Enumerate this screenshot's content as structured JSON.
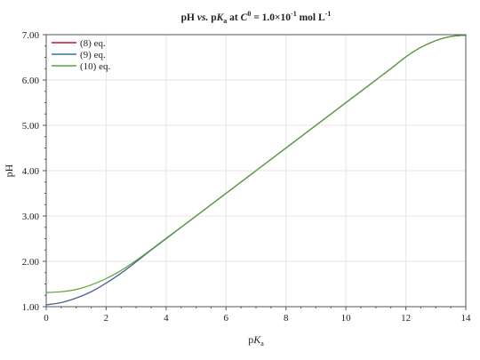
{
  "chart_data": {
    "type": "line",
    "title": {
      "pre": "pH ",
      "vs": "vs.",
      "mid": " p",
      "K": "K",
      "a_sub": "a",
      "at": " at ",
      "C": "C",
      "zero_sup": "0",
      "eq": " = 1.0×10",
      "exp_sup": "-1",
      "unit": " mol L",
      "unit_sup": "-1"
    },
    "xlabel": {
      "p": "p",
      "K": "K",
      "sub": "a"
    },
    "ylabel": "pH",
    "xlim": [
      0,
      14
    ],
    "ylim": [
      1,
      7
    ],
    "xticks": [
      "0",
      "2",
      "4",
      "6",
      "8",
      "10",
      "12",
      "14"
    ],
    "yticks": [
      "1.00",
      "2.00",
      "3.00",
      "4.00",
      "5.00",
      "6.00",
      "7.00"
    ],
    "xtick_values": [
      0,
      2,
      4,
      6,
      8,
      10,
      12,
      14
    ],
    "ytick_values": [
      1,
      2,
      3,
      4,
      5,
      6,
      7
    ],
    "grid": true,
    "legend_position": "top-left",
    "x": [
      0,
      0.5,
      1,
      1.5,
      2,
      2.5,
      3,
      3.5,
      4,
      5,
      6,
      7,
      8,
      9,
      10,
      11,
      11.5,
      12,
      12.5,
      13,
      13.5,
      14
    ],
    "series": [
      {
        "name": "(8) eq.",
        "color": "#c0122c",
        "values": [
          1.04,
          1.09,
          1.19,
          1.33,
          1.52,
          1.74,
          1.99,
          2.25,
          2.5,
          3.0,
          3.5,
          4.0,
          4.5,
          5.0,
          5.5,
          6.0,
          6.25,
          6.51,
          6.72,
          6.87,
          6.96,
          6.99
        ]
      },
      {
        "name": "(9) eq.",
        "color": "#3f6fa8",
        "values": [
          1.04,
          1.09,
          1.19,
          1.33,
          1.52,
          1.74,
          1.99,
          2.25,
          2.5,
          3.0,
          3.5,
          4.0,
          4.5,
          5.0,
          5.5,
          6.0,
          6.25,
          6.51,
          6.72,
          6.87,
          6.96,
          6.99
        ]
      },
      {
        "name": "(10) eq.",
        "color": "#5aa33d",
        "values": [
          1.31,
          1.33,
          1.38,
          1.48,
          1.62,
          1.8,
          2.02,
          2.26,
          2.51,
          3.0,
          3.5,
          4.0,
          4.5,
          5.0,
          5.5,
          6.0,
          6.25,
          6.51,
          6.72,
          6.87,
          6.96,
          6.99
        ]
      }
    ]
  }
}
